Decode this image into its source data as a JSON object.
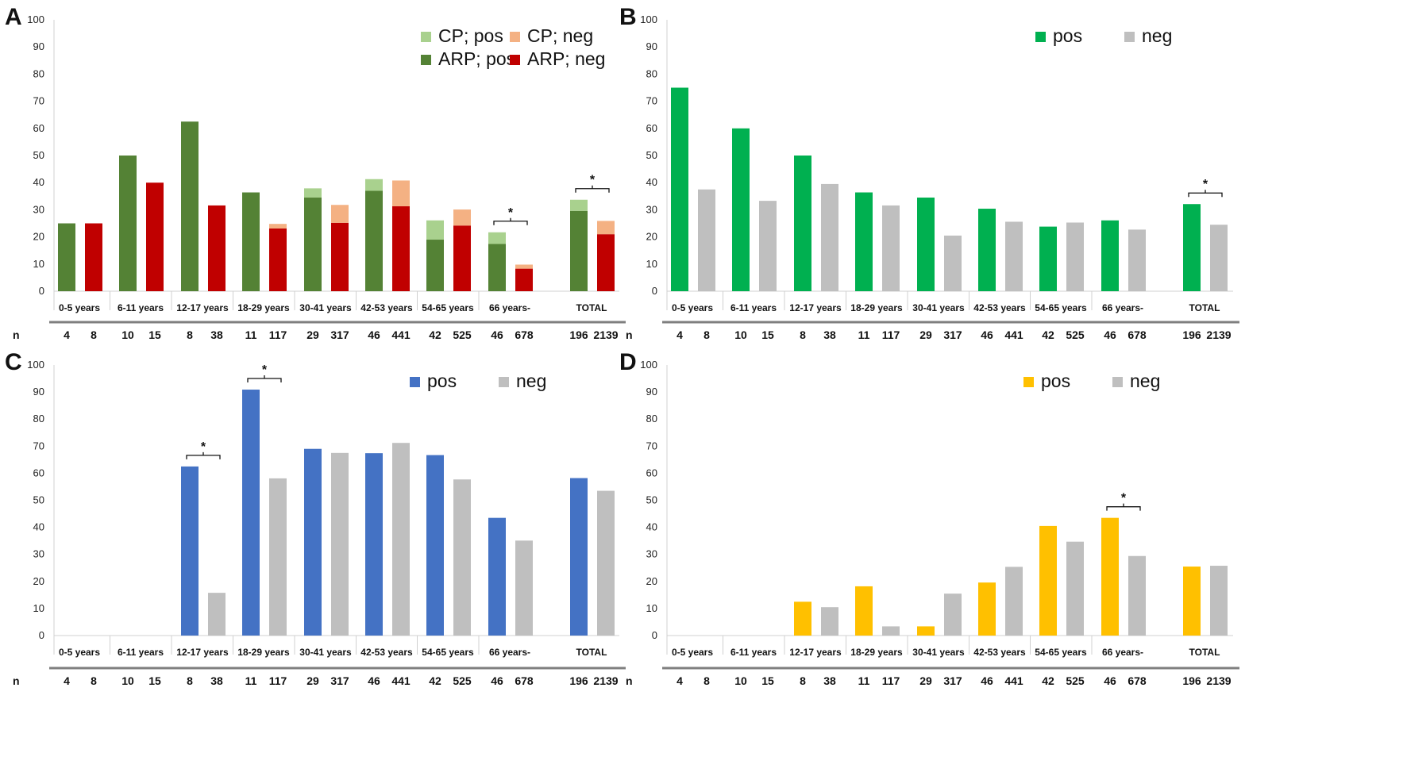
{
  "chart_data": [
    {
      "panel": "A",
      "type": "bar",
      "stacked": true,
      "categories": [
        "0-5 years",
        "6-11 years",
        "12-17 years",
        "18-29 years",
        "30-41 years",
        "42-53 years",
        "54-65 years",
        "66 years-",
        "TOTAL"
      ],
      "n_label": "n",
      "n_values": [
        [
          "4",
          "8"
        ],
        [
          "10",
          "15"
        ],
        [
          "8",
          "38"
        ],
        [
          "11",
          "117"
        ],
        [
          "29",
          "317"
        ],
        [
          "46",
          "441"
        ],
        [
          "42",
          "525"
        ],
        [
          "46",
          "678"
        ],
        [
          "196",
          "2139"
        ]
      ],
      "ylim": [
        0,
        100
      ],
      "yticks": [
        "0",
        "10",
        "20",
        "30",
        "40",
        "50",
        "60",
        "70",
        "80",
        "90",
        "100"
      ],
      "legend": [
        {
          "label": "CP; pos",
          "color": "#a9d18e"
        },
        {
          "label": "CP; neg",
          "color": "#f4b183"
        },
        {
          "label": "ARP; pos",
          "color": "#548235"
        },
        {
          "label": "ARP; neg",
          "color": "#c00000"
        }
      ],
      "series": [
        {
          "name": "ARP; pos",
          "group": "pos",
          "color": "#548235",
          "values": [
            25,
            50,
            62.5,
            36.4,
            34.5,
            37,
            19,
            17.4,
            29.6
          ]
        },
        {
          "name": "CP; pos",
          "group": "pos",
          "color": "#a9d18e",
          "values": [
            0,
            0,
            0,
            0,
            3.4,
            4.3,
            7.1,
            4.3,
            4.1
          ]
        },
        {
          "name": "ARP; neg",
          "group": "neg",
          "color": "#c00000",
          "values": [
            25,
            40,
            31.6,
            23.1,
            25.2,
            31.3,
            24.2,
            8.3,
            21
          ]
        },
        {
          "name": "CP; neg",
          "group": "neg",
          "color": "#f4b183",
          "values": [
            0,
            0,
            0,
            1.7,
            6.6,
            9.5,
            5.9,
            1.5,
            4.9
          ]
        }
      ],
      "significance": [
        {
          "category": "66 years-",
          "label": "*"
        },
        {
          "category": "TOTAL",
          "label": "*"
        }
      ]
    },
    {
      "panel": "B",
      "type": "bar",
      "stacked": false,
      "categories": [
        "0-5 years",
        "6-11 years",
        "12-17 years",
        "18-29 years",
        "30-41 years",
        "42-53 years",
        "54-65 years",
        "66 years-",
        "TOTAL"
      ],
      "n_label": "n",
      "n_values": [
        [
          "4",
          "8"
        ],
        [
          "10",
          "15"
        ],
        [
          "8",
          "38"
        ],
        [
          "11",
          "117"
        ],
        [
          "29",
          "317"
        ],
        [
          "46",
          "441"
        ],
        [
          "42",
          "525"
        ],
        [
          "46",
          "678"
        ],
        [
          "196",
          "2139"
        ]
      ],
      "ylim": [
        0,
        100
      ],
      "yticks": [
        "0",
        "10",
        "20",
        "30",
        "40",
        "50",
        "60",
        "70",
        "80",
        "90",
        "100"
      ],
      "legend": [
        {
          "label": "pos",
          "color": "#00b050"
        },
        {
          "label": "neg",
          "color": "#bfbfbf"
        }
      ],
      "series": [
        {
          "name": "pos",
          "color": "#00b050",
          "values": [
            75,
            60,
            50,
            36.4,
            34.5,
            30.4,
            23.8,
            26.1,
            32.1
          ]
        },
        {
          "name": "neg",
          "color": "#bfbfbf",
          "values": [
            37.5,
            33.3,
            39.5,
            31.6,
            20.5,
            25.6,
            25.3,
            22.7,
            24.5
          ]
        }
      ],
      "significance": [
        {
          "category": "TOTAL",
          "label": "*"
        }
      ]
    },
    {
      "panel": "C",
      "type": "bar",
      "stacked": false,
      "categories": [
        "0-5 years",
        "6-11 years",
        "12-17 years",
        "18-29 years",
        "30-41 years",
        "42-53 years",
        "54-65 years",
        "66 years-",
        "TOTAL"
      ],
      "n_label": "n",
      "n_values": [
        [
          "4",
          "8"
        ],
        [
          "10",
          "15"
        ],
        [
          "8",
          "38"
        ],
        [
          "11",
          "117"
        ],
        [
          "29",
          "317"
        ],
        [
          "46",
          "441"
        ],
        [
          "42",
          "525"
        ],
        [
          "46",
          "678"
        ],
        [
          "196",
          "2139"
        ]
      ],
      "ylim": [
        0,
        100
      ],
      "yticks": [
        "0",
        "10",
        "20",
        "30",
        "40",
        "50",
        "60",
        "70",
        "80",
        "90",
        "100"
      ],
      "legend": [
        {
          "label": "pos",
          "color": "#4472c4"
        },
        {
          "label": "neg",
          "color": "#bfbfbf"
        }
      ],
      "series": [
        {
          "name": "pos",
          "color": "#4472c4",
          "values": [
            0,
            0,
            62.5,
            90.9,
            69,
            67.4,
            66.7,
            43.5,
            58.2
          ]
        },
        {
          "name": "neg",
          "color": "#bfbfbf",
          "values": [
            0,
            0,
            15.8,
            58.1,
            67.5,
            71.2,
            57.7,
            35.1,
            53.5
          ]
        }
      ],
      "significance": [
        {
          "category": "12-17 years",
          "label": "*"
        },
        {
          "category": "18-29 years",
          "label": "*"
        }
      ]
    },
    {
      "panel": "D",
      "type": "bar",
      "stacked": false,
      "categories": [
        "0-5 years",
        "6-11 years",
        "12-17 years",
        "18-29 years",
        "30-41 years",
        "42-53 years",
        "54-65 years",
        "66 years-",
        "TOTAL"
      ],
      "n_label": "n",
      "n_values": [
        [
          "4",
          "8"
        ],
        [
          "10",
          "15"
        ],
        [
          "8",
          "38"
        ],
        [
          "11",
          "117"
        ],
        [
          "29",
          "317"
        ],
        [
          "46",
          "441"
        ],
        [
          "42",
          "525"
        ],
        [
          "46",
          "678"
        ],
        [
          "196",
          "2139"
        ]
      ],
      "ylim": [
        0,
        100
      ],
      "yticks": [
        "0",
        "10",
        "20",
        "30",
        "40",
        "50",
        "60",
        "70",
        "80",
        "90",
        "100"
      ],
      "legend": [
        {
          "label": "pos",
          "color": "#ffc000"
        },
        {
          "label": "neg",
          "color": "#bfbfbf"
        }
      ],
      "series": [
        {
          "name": "pos",
          "color": "#ffc000",
          "values": [
            0,
            0,
            12.5,
            18.2,
            3.4,
            19.6,
            40.5,
            43.5,
            25.5
          ]
        },
        {
          "name": "neg",
          "color": "#bfbfbf",
          "values": [
            0,
            0,
            10.5,
            3.4,
            15.5,
            25.4,
            34.7,
            29.4,
            25.8
          ]
        }
      ],
      "significance": [
        {
          "category": "66 years-",
          "label": "*"
        }
      ]
    }
  ]
}
